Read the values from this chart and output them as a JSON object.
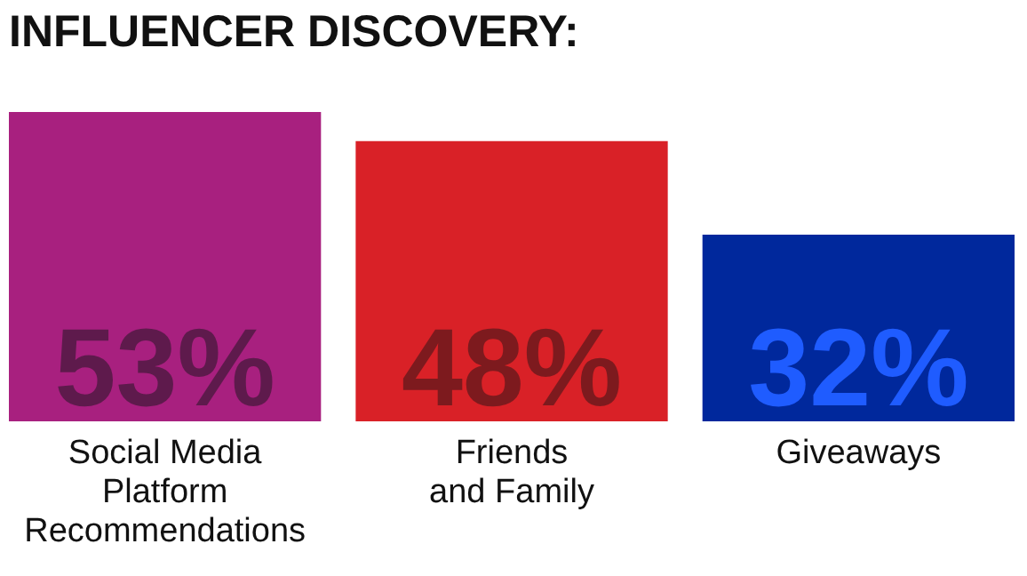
{
  "chart_data": {
    "type": "bar",
    "title": "INFLUENCER DISCOVERY:",
    "categories": [
      "Social Media\nPlatform\nRecommendations",
      "Friends\nand Family",
      "Giveaways"
    ],
    "values": [
      53,
      48,
      32
    ],
    "colors": [
      "#a8207f",
      "#d92127",
      "#00289c"
    ],
    "value_labels": [
      "53%",
      "48%",
      "32%"
    ],
    "grid": false
  }
}
